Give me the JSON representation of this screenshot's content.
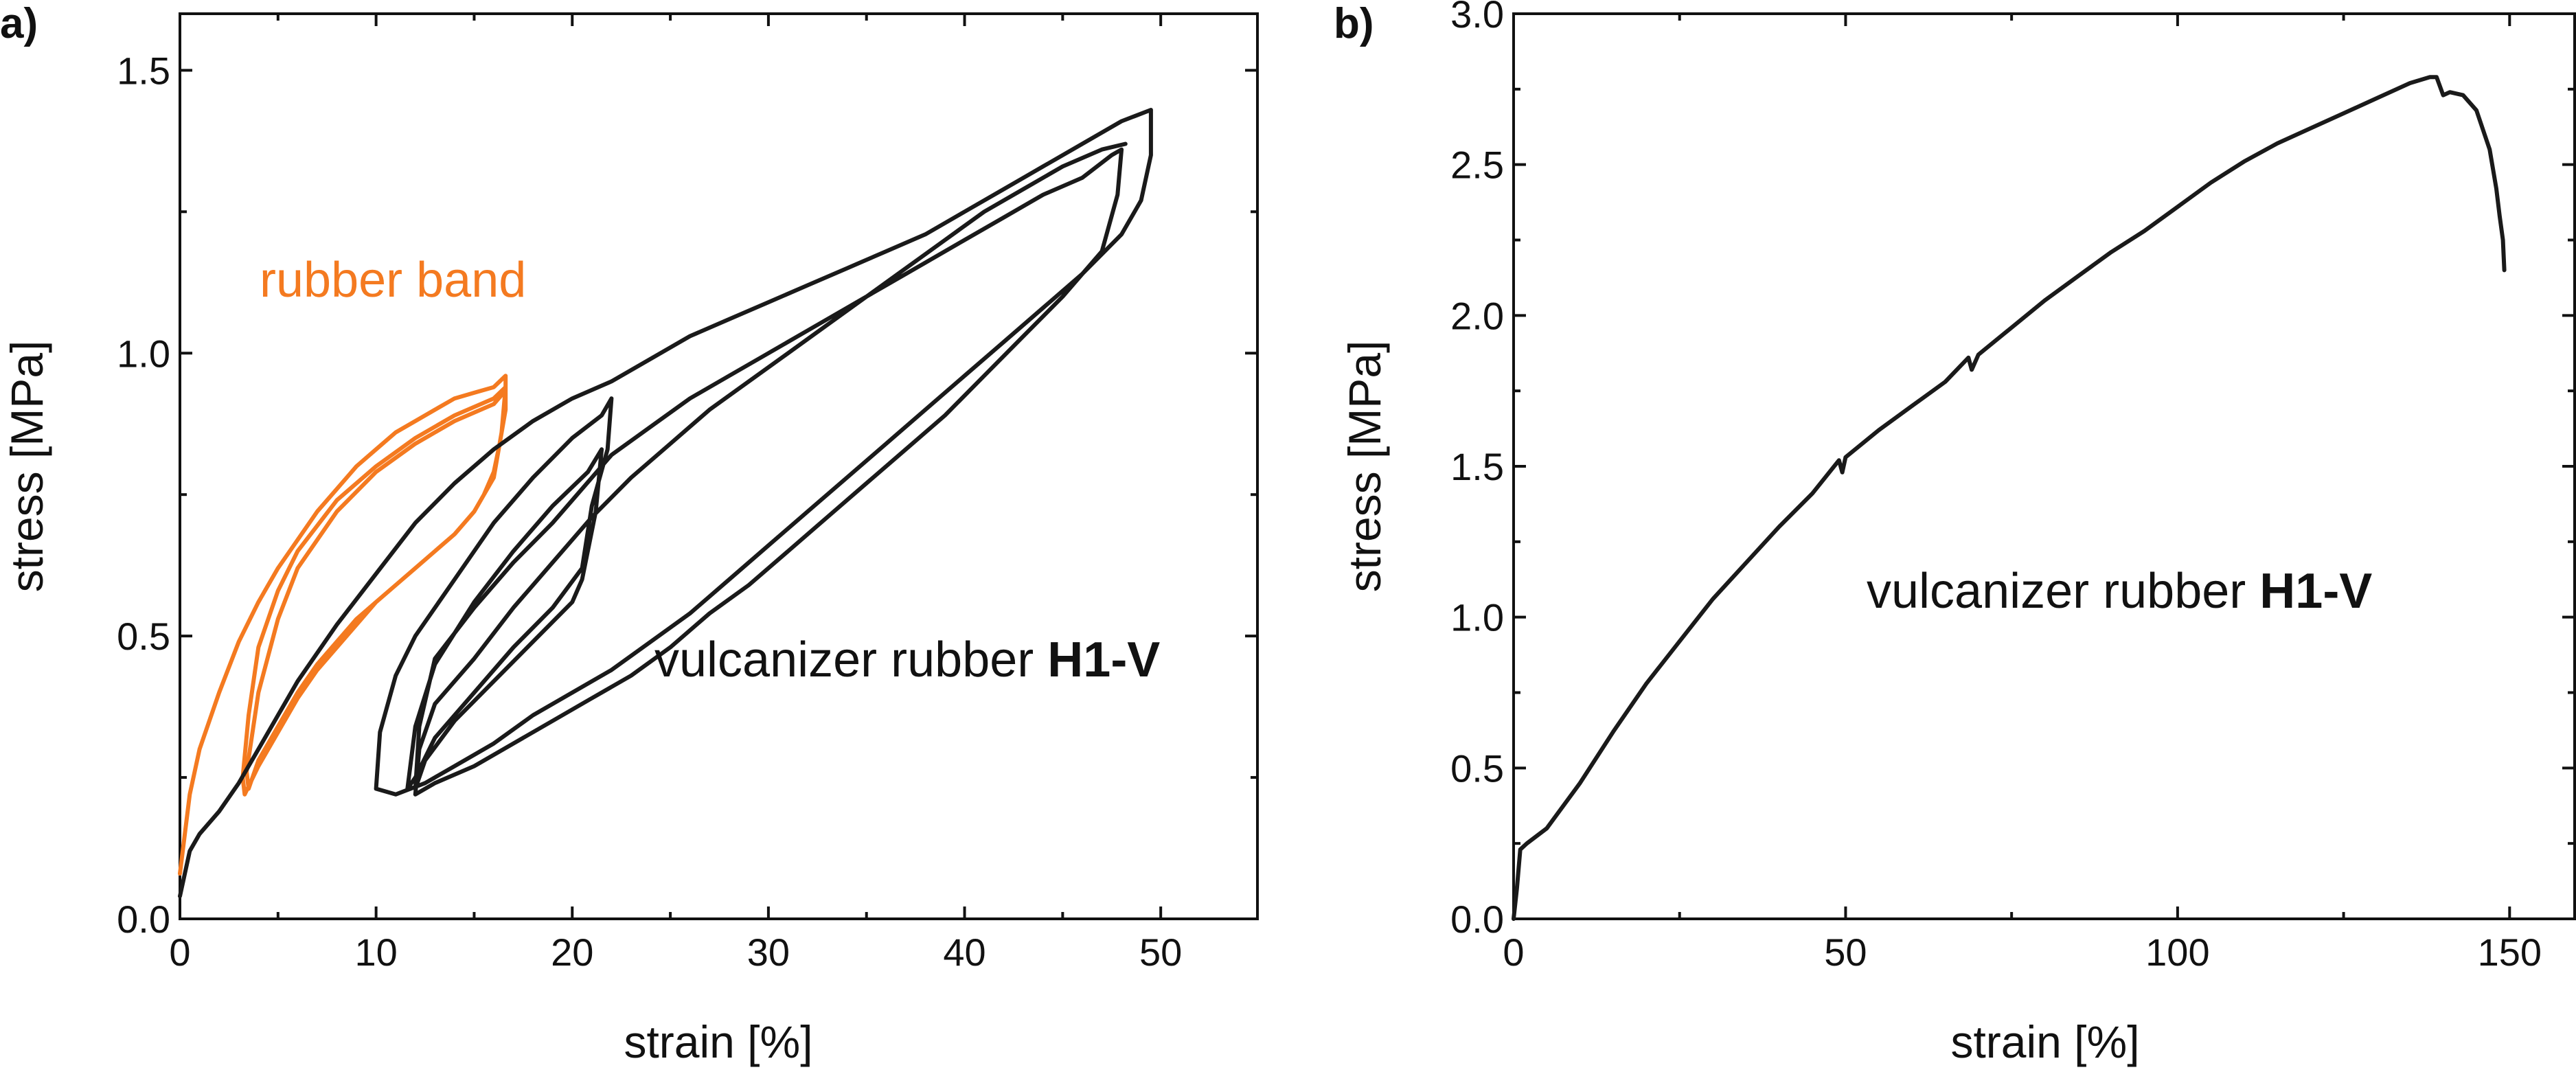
{
  "chart_data": [
    {
      "panel": "a)",
      "type": "line",
      "xlabel": "strain [%]",
      "ylabel": "stress [MPa]",
      "xlim": [
        0,
        55
      ],
      "ylim": [
        0,
        1.6
      ],
      "xticks": [
        0,
        10,
        20,
        30,
        40,
        50
      ],
      "xtick_labels": [
        "0",
        "10",
        "20",
        "30",
        "40",
        "50"
      ],
      "yticks": [
        0,
        0.5,
        1.0,
        1.5
      ],
      "ytick_labels": [
        "0.0",
        "0.5",
        "1.0",
        "1.5"
      ],
      "annotations": {
        "rubber_band": "rubber band",
        "vulcanizer_prefix": "vulcanizer rubber ",
        "vulcanizer_bold": "H1-V"
      },
      "colors": {
        "rubber_band": "#f47a20",
        "vulcanizer": "#1a1a1a"
      },
      "series": [
        {
          "label_ref": "rubber_band",
          "color": "#f47a20",
          "x": [
            0,
            0.5,
            1,
            2,
            3,
            4,
            5,
            6,
            7,
            8,
            9,
            10,
            11,
            12,
            13,
            14,
            15,
            16,
            16.6,
            16.6,
            16.3,
            16,
            15.5,
            15,
            14,
            13,
            12,
            11,
            10,
            9,
            8,
            7,
            6,
            5,
            4,
            3.3,
            3.2,
            3.5,
            4,
            5,
            6,
            8,
            10,
            12,
            14,
            16,
            16.6,
            16.4,
            16,
            15,
            14,
            13,
            12,
            11,
            10,
            9,
            8,
            7,
            6,
            5,
            4,
            3.5,
            3.4,
            4,
            5,
            6,
            8,
            10,
            12,
            14,
            16,
            16.5
          ],
          "y": [
            0.08,
            0.22,
            0.3,
            0.4,
            0.49,
            0.56,
            0.62,
            0.67,
            0.72,
            0.76,
            0.8,
            0.83,
            0.86,
            0.88,
            0.9,
            0.92,
            0.93,
            0.94,
            0.96,
            0.9,
            0.84,
            0.79,
            0.75,
            0.72,
            0.68,
            0.65,
            0.62,
            0.59,
            0.56,
            0.52,
            0.48,
            0.44,
            0.39,
            0.33,
            0.27,
            0.22,
            0.25,
            0.36,
            0.48,
            0.58,
            0.65,
            0.74,
            0.8,
            0.85,
            0.89,
            0.92,
            0.94,
            0.86,
            0.78,
            0.72,
            0.68,
            0.65,
            0.62,
            0.59,
            0.56,
            0.53,
            0.49,
            0.45,
            0.4,
            0.34,
            0.28,
            0.23,
            0.26,
            0.4,
            0.53,
            0.62,
            0.72,
            0.79,
            0.84,
            0.88,
            0.91,
            0.93
          ]
        },
        {
          "label_ref": "vulcanizer",
          "color": "#1a1a1a",
          "x": [
            0,
            0.5,
            1,
            2,
            3,
            4,
            5,
            6,
            8,
            10,
            12,
            14,
            16,
            18,
            20,
            22,
            24,
            26,
            28,
            30,
            32,
            34,
            36,
            38,
            40,
            42,
            44,
            46,
            48,
            49.5,
            49.5,
            49,
            48,
            46,
            44,
            42,
            40,
            38,
            36,
            34,
            32,
            30,
            28,
            26,
            24,
            22,
            20,
            18,
            16,
            14,
            12.5,
            11,
            10,
            10.2,
            11,
            12,
            14,
            16,
            18,
            20,
            21.5,
            22,
            21.8,
            21,
            20.5,
            19,
            17,
            15,
            13,
            12,
            11.6,
            12,
            13,
            15,
            17,
            19,
            20.8,
            21.5,
            21.2,
            20.5,
            20,
            18,
            16,
            14,
            12.5,
            12,
            12.2,
            13,
            15,
            17,
            19,
            21,
            22,
            24,
            26,
            28,
            30,
            32,
            34,
            36,
            38,
            40,
            42,
            44,
            46,
            47.5,
            48,
            47.8,
            47,
            45,
            43,
            41,
            39,
            37,
            35,
            33,
            31,
            29,
            27,
            25,
            23,
            21,
            19,
            17,
            15,
            13,
            12,
            12.2,
            13,
            15,
            17,
            19,
            21,
            23,
            25,
            27,
            29,
            31,
            33,
            35,
            37,
            39,
            41,
            43,
            45,
            47,
            48.2
          ],
          "y": [
            0.04,
            0.12,
            0.15,
            0.19,
            0.24,
            0.3,
            0.36,
            0.42,
            0.52,
            0.61,
            0.7,
            0.77,
            0.83,
            0.88,
            0.92,
            0.95,
            0.99,
            1.03,
            1.06,
            1.09,
            1.12,
            1.15,
            1.18,
            1.21,
            1.25,
            1.29,
            1.33,
            1.37,
            1.41,
            1.43,
            1.35,
            1.27,
            1.21,
            1.14,
            1.08,
            1.02,
            0.96,
            0.9,
            0.84,
            0.78,
            0.72,
            0.66,
            0.6,
            0.54,
            0.49,
            0.44,
            0.4,
            0.36,
            0.31,
            0.27,
            0.24,
            0.22,
            0.23,
            0.33,
            0.43,
            0.5,
            0.6,
            0.7,
            0.78,
            0.85,
            0.89,
            0.92,
            0.83,
            0.73,
            0.62,
            0.55,
            0.48,
            0.4,
            0.32,
            0.25,
            0.23,
            0.34,
            0.45,
            0.56,
            0.65,
            0.73,
            0.79,
            0.83,
            0.72,
            0.6,
            0.56,
            0.49,
            0.42,
            0.35,
            0.28,
            0.23,
            0.34,
            0.46,
            0.55,
            0.63,
            0.7,
            0.78,
            0.82,
            0.87,
            0.92,
            0.96,
            1.0,
            1.04,
            1.08,
            1.12,
            1.16,
            1.2,
            1.24,
            1.28,
            1.31,
            1.35,
            1.36,
            1.28,
            1.18,
            1.1,
            1.03,
            0.96,
            0.89,
            0.83,
            0.77,
            0.71,
            0.65,
            0.59,
            0.54,
            0.48,
            0.43,
            0.39,
            0.35,
            0.31,
            0.27,
            0.24,
            0.22,
            0.3,
            0.38,
            0.46,
            0.55,
            0.63,
            0.71,
            0.78,
            0.84,
            0.9,
            0.95,
            1.0,
            1.05,
            1.1,
            1.15,
            1.2,
            1.25,
            1.29,
            1.33,
            1.36,
            1.37
          ]
        }
      ]
    },
    {
      "panel": "b)",
      "type": "line",
      "xlabel": "strain [%]",
      "ylabel": "stress [MPa]",
      "xlim": [
        0,
        160
      ],
      "ylim": [
        0,
        3.0
      ],
      "xticks": [
        0,
        50,
        100,
        150
      ],
      "xtick_labels": [
        "0",
        "50",
        "100",
        "150"
      ],
      "yticks": [
        0,
        0.5,
        1.0,
        1.5,
        2.0,
        2.5,
        3.0
      ],
      "ytick_labels": [
        "0.0",
        "0.5",
        "1.0",
        "1.5",
        "2.0",
        "2.5",
        "3.0"
      ],
      "annotations": {
        "vulcanizer_prefix": "vulcanizer rubber ",
        "vulcanizer_bold": "H1-V"
      },
      "colors": {
        "curve": "#1a1a1a"
      },
      "series": [
        {
          "label_ref": "vulcanizer",
          "color": "#1a1a1a",
          "x": [
            0,
            0.5,
            1,
            2,
            5,
            10,
            15,
            20,
            25,
            30,
            35,
            40,
            45,
            49,
            49.5,
            50,
            55,
            60,
            65,
            68.5,
            69,
            70,
            75,
            80,
            85,
            90,
            95,
            100,
            105,
            110,
            115,
            120,
            125,
            130,
            135,
            138,
            139,
            140,
            141,
            143,
            145,
            147,
            148,
            148.5,
            149,
            149.2
          ],
          "y": [
            0.0,
            0.1,
            0.23,
            0.25,
            0.3,
            0.45,
            0.62,
            0.78,
            0.92,
            1.06,
            1.18,
            1.3,
            1.41,
            1.52,
            1.48,
            1.53,
            1.62,
            1.7,
            1.78,
            1.86,
            1.82,
            1.87,
            1.96,
            2.05,
            2.13,
            2.21,
            2.28,
            2.36,
            2.44,
            2.51,
            2.57,
            2.62,
            2.67,
            2.72,
            2.77,
            2.79,
            2.79,
            2.73,
            2.74,
            2.73,
            2.68,
            2.55,
            2.42,
            2.33,
            2.25,
            2.15
          ]
        }
      ]
    }
  ]
}
